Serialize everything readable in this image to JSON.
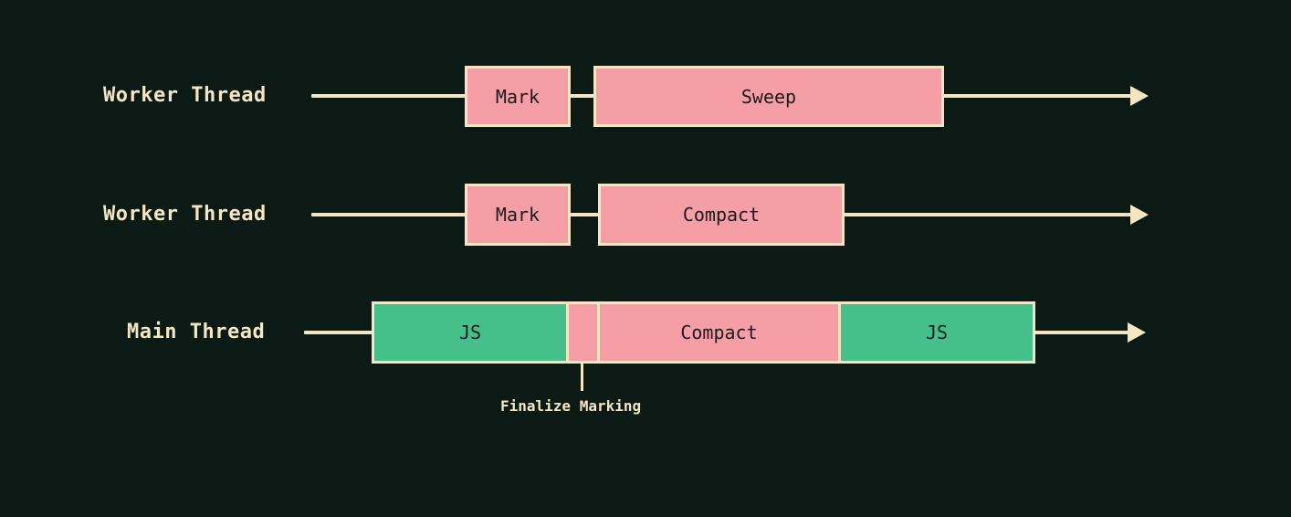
{
  "colors": {
    "background": "#0b1a15",
    "line": "#f4e6c2",
    "gc_task": "#f59ea6",
    "js_task": "#45c08a"
  },
  "rows": [
    {
      "label": "Worker Thread",
      "segments": [
        {
          "label": "Mark",
          "kind": "gc"
        },
        {
          "label": "Sweep",
          "kind": "gc"
        }
      ]
    },
    {
      "label": "Worker Thread",
      "segments": [
        {
          "label": "Mark",
          "kind": "gc"
        },
        {
          "label": "Compact",
          "kind": "gc"
        }
      ]
    },
    {
      "label": "Main Thread",
      "segments": [
        {
          "label": "JS",
          "kind": "js"
        },
        {
          "label": "",
          "kind": "gc"
        },
        {
          "label": "Compact",
          "kind": "gc"
        },
        {
          "label": "JS",
          "kind": "js"
        }
      ]
    }
  ],
  "annotation": {
    "label": "Finalize Marking"
  }
}
